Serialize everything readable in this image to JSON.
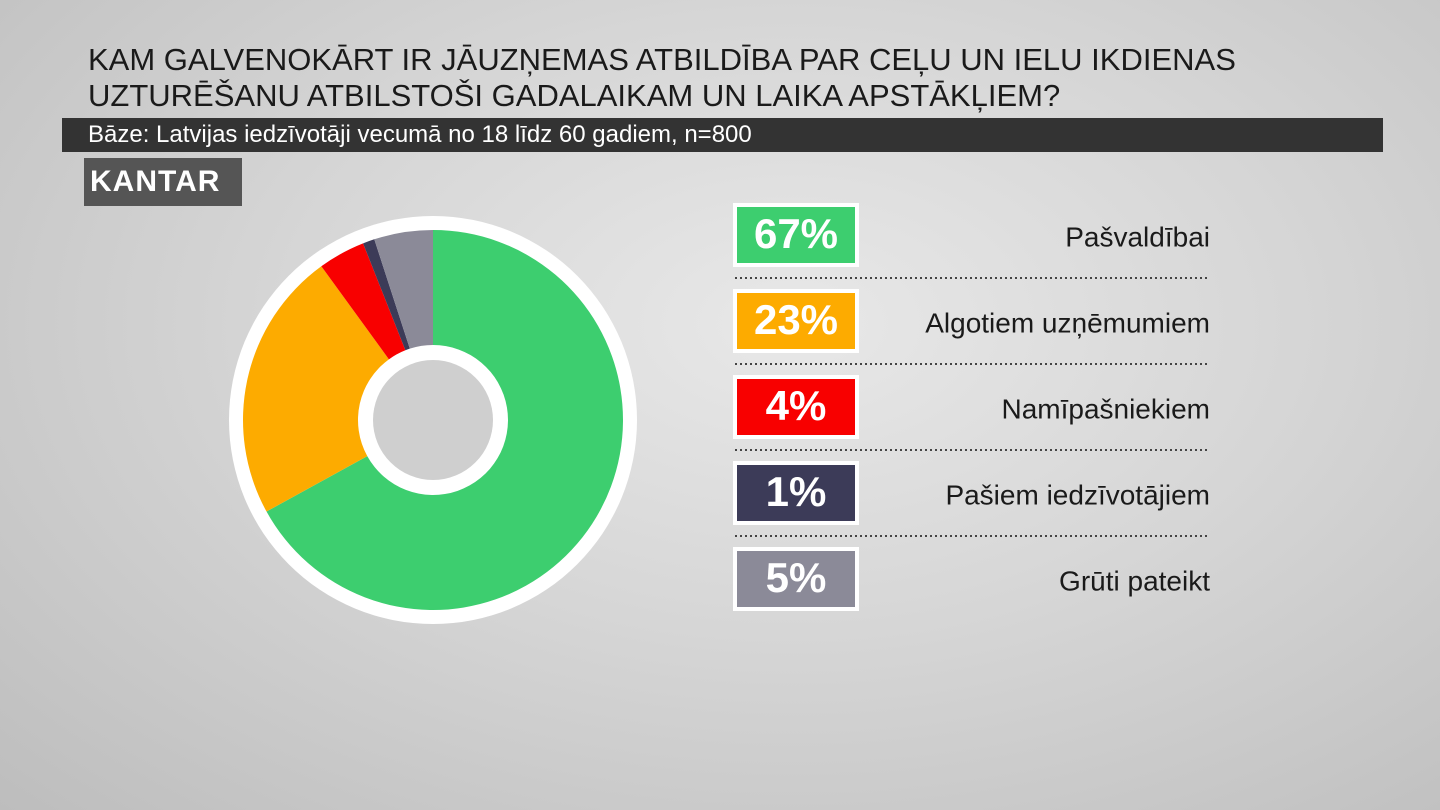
{
  "chart_data": {
    "type": "pie",
    "title": "KAM GALVENOKĀRT IR JĀUZŅEMAS ATBILDĪBA PAR CEĻU UN IELU IKDIENAS UZTURĒŠANU ATBILSTOŠI GADALAIKAM UN LAIKA APSTĀKĻIEM?",
    "subtitle": "Bāze: Latvijas iedzīvotāji vecumā no 18 līdz 60 gadiem, n=800",
    "source": "KANTAR",
    "categories": [
      "Pašvaldībai",
      "Algotiem uzņēmumiem",
      "Namīpašniekiem",
      "Pašiem iedzīvotājiem",
      "Grūti pateikt"
    ],
    "values": [
      67,
      23,
      4,
      1,
      5
    ],
    "value_labels": [
      "67%",
      "23%",
      "4%",
      "1%",
      "5%"
    ],
    "colors": [
      "#3dce6f",
      "#fdab00",
      "#f80000",
      "#3c3b58",
      "#8b8a98"
    ]
  }
}
